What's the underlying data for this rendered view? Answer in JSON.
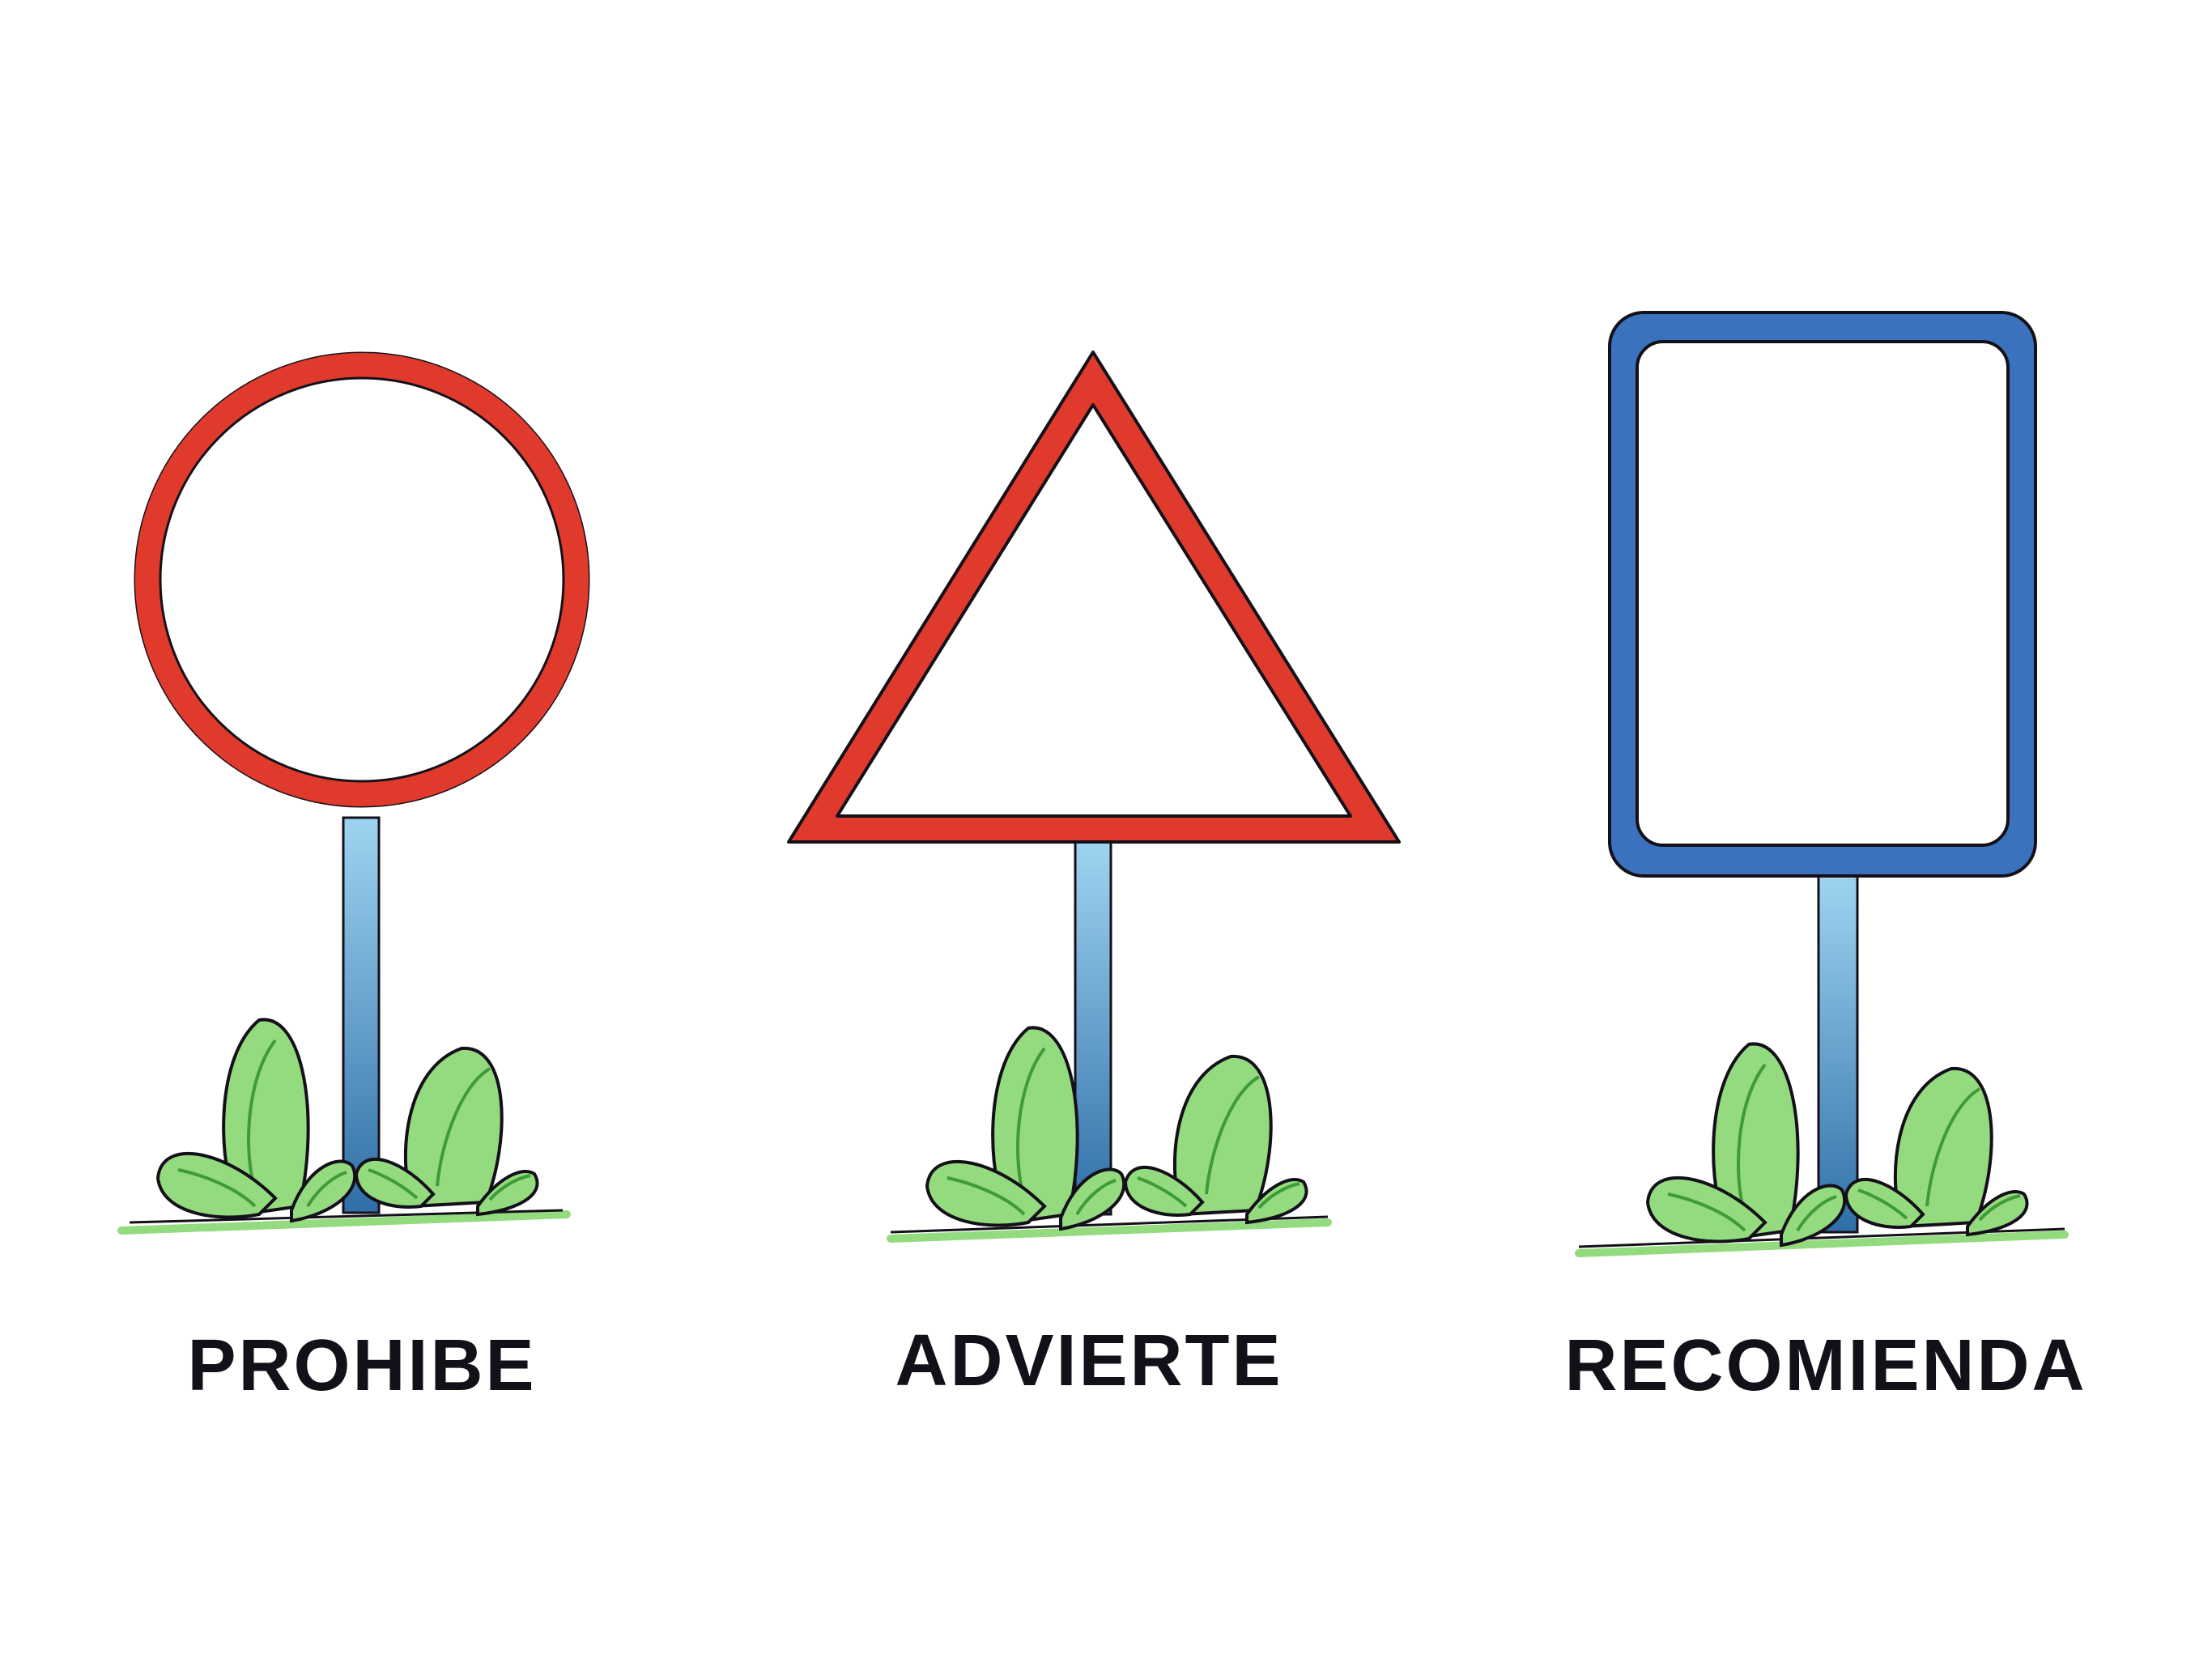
{
  "signs": [
    {
      "id": "prohibe",
      "shape": "circle",
      "label": "PROHIBE"
    },
    {
      "id": "advierte",
      "shape": "triangle",
      "label": "ADVIERTE"
    },
    {
      "id": "recomienda",
      "shape": "rounded-rectangle",
      "label": "RECOMIENDA"
    }
  ],
  "colors": {
    "prohibe_border": "#E03A2C",
    "advierte_border": "#E03A2C",
    "recomienda_border": "#3A72BE",
    "outline": "#141019",
    "pole_top": "#9FD4F0",
    "pole_bottom": "#2F6FA8",
    "grass": "#93DB7E",
    "grass_detail": "#3F9A3A",
    "background": "#FFFFFF"
  }
}
